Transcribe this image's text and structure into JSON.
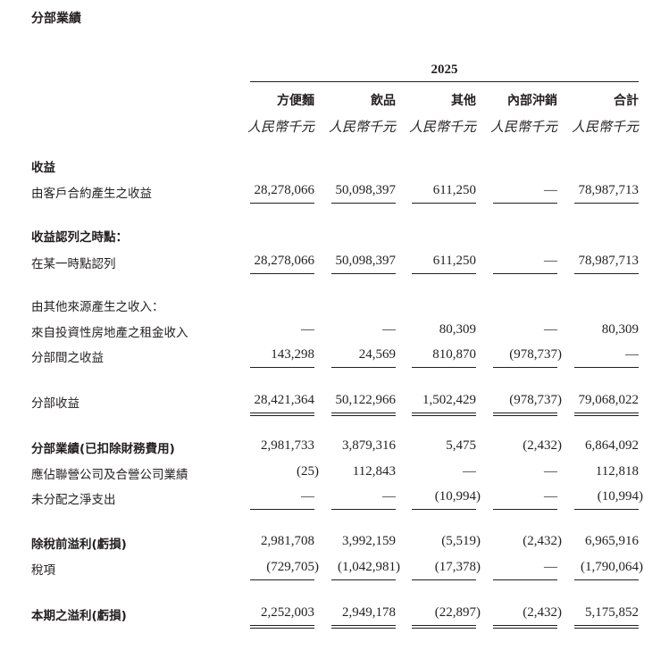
{
  "title": "分部業績",
  "year": "2025",
  "columns": [
    "方便麵",
    "飲品",
    "其他",
    "內部沖銷",
    "合計"
  ],
  "unit": "人民幣千元",
  "rows": [
    {
      "label": "收益",
      "bold": true,
      "values": []
    },
    {
      "label": "由客戶合約產生之收益",
      "values": [
        "28,278,066",
        "50,098,397",
        "611,250",
        "—",
        "78,987,713"
      ],
      "line": "single"
    },
    {
      "label": "收益認列之時點：",
      "bold": true,
      "values": []
    },
    {
      "label": "在某一時點認列",
      "values": [
        "28,278,066",
        "50,098,397",
        "611,250",
        "—",
        "78,987,713"
      ],
      "line": "single"
    },
    {
      "label": "由其他來源產生之收入：",
      "values": []
    },
    {
      "label": "來自投資性房地產之租金收入",
      "values": [
        "—",
        "—",
        "80,309",
        "—",
        "80,309"
      ]
    },
    {
      "label": "分部間之收益",
      "values": [
        "143,298",
        "24,569",
        "810,870",
        "(978,737)",
        "—"
      ],
      "line": "single"
    },
    {
      "label": "分部收益",
      "values": [
        "28,421,364",
        "50,122,966",
        "1,502,429",
        "(978,737)",
        "79,068,022"
      ],
      "line": "double"
    },
    {
      "label": "分部業績(已扣除財務費用)",
      "bold": true,
      "values": [
        "2,981,733",
        "3,879,316",
        "5,475",
        "(2,432)",
        "6,864,092"
      ]
    },
    {
      "label": "應佔聯營公司及合營公司業績",
      "values": [
        "(25)",
        "112,843",
        "—",
        "—",
        "112,818"
      ]
    },
    {
      "label": "未分配之淨支出",
      "values": [
        "—",
        "—",
        "(10,994)",
        "—",
        "(10,994)"
      ],
      "line": "single"
    },
    {
      "label": "除稅前溢利(虧損)",
      "bold": true,
      "values": [
        "2,981,708",
        "3,992,159",
        "(5,519)",
        "(2,432)",
        "6,965,916"
      ]
    },
    {
      "label": "稅項",
      "values": [
        "(729,705)",
        "(1,042,981)",
        "(17,378)",
        "—",
        "(1,790,064)"
      ],
      "line": "single"
    },
    {
      "label": "本期之溢利(虧損)",
      "bold": true,
      "values": [
        "2,252,003",
        "2,949,178",
        "(22,897)",
        "(2,432)",
        "5,175,852"
      ],
      "line": "double"
    }
  ]
}
